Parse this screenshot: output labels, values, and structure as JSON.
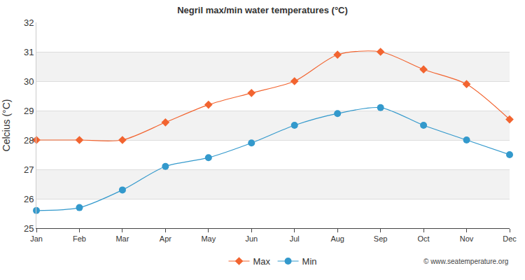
{
  "chart_data": {
    "type": "line",
    "title": "Negril max/min water temperatures (°C)",
    "y_label": "Celcius (°C)",
    "categories": [
      "Jan",
      "Feb",
      "Mar",
      "Apr",
      "May",
      "Jun",
      "Jul",
      "Aug",
      "Sep",
      "Oct",
      "Nov",
      "Dec"
    ],
    "series": [
      {
        "name": "Max",
        "color": "#f26430",
        "marker": "diamond",
        "line_style": "solid",
        "values": [
          28.0,
          28.0,
          28.0,
          28.6,
          29.2,
          29.6,
          30.0,
          30.9,
          31.0,
          30.4,
          29.9,
          28.7
        ]
      },
      {
        "name": "Min",
        "color": "#3399cc",
        "marker": "circle",
        "line_style": "solid",
        "values": [
          25.6,
          25.7,
          26.3,
          27.1,
          27.4,
          27.9,
          28.5,
          28.9,
          29.1,
          28.5,
          28.0,
          27.5
        ]
      }
    ],
    "ylim": [
      25,
      32
    ],
    "yticks": [
      25,
      26,
      27,
      28,
      29,
      30,
      31,
      32
    ],
    "grid": true,
    "legend": "bottom",
    "annotations": [
      "© www.seatemperature.org"
    ]
  }
}
